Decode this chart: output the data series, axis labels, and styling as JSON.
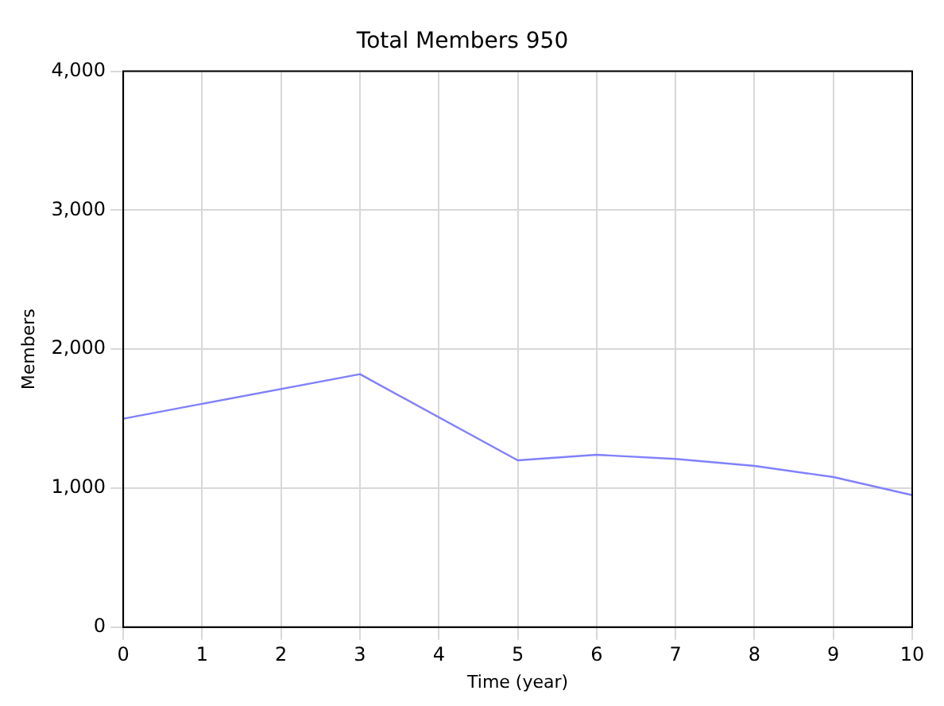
{
  "chart_data": {
    "type": "line",
    "title": "Total Members 950",
    "xlabel": "Time (year)",
    "ylabel": "Members",
    "x": [
      0,
      3,
      5,
      6,
      7,
      8,
      9,
      10
    ],
    "series": [
      {
        "color": "#8080ff",
        "values": [
          1500,
          1820,
          1200,
          1240,
          1210,
          1160,
          1080,
          950
        ]
      }
    ],
    "xlim": [
      0,
      10
    ],
    "xticks": [
      0,
      1,
      2,
      3,
      4,
      5,
      6,
      7,
      8,
      9,
      10
    ],
    "ylim": [
      0,
      4000
    ],
    "yticks": [
      {
        "value": 0,
        "label": "0"
      },
      {
        "value": 1000,
        "label": "1,000"
      },
      {
        "value": 2000,
        "label": "2,000"
      },
      {
        "value": 3000,
        "label": "3,000"
      },
      {
        "value": 4000,
        "label": "4,000"
      }
    ],
    "grid": true,
    "legend": false,
    "marker": "none",
    "line_style": "solid"
  }
}
